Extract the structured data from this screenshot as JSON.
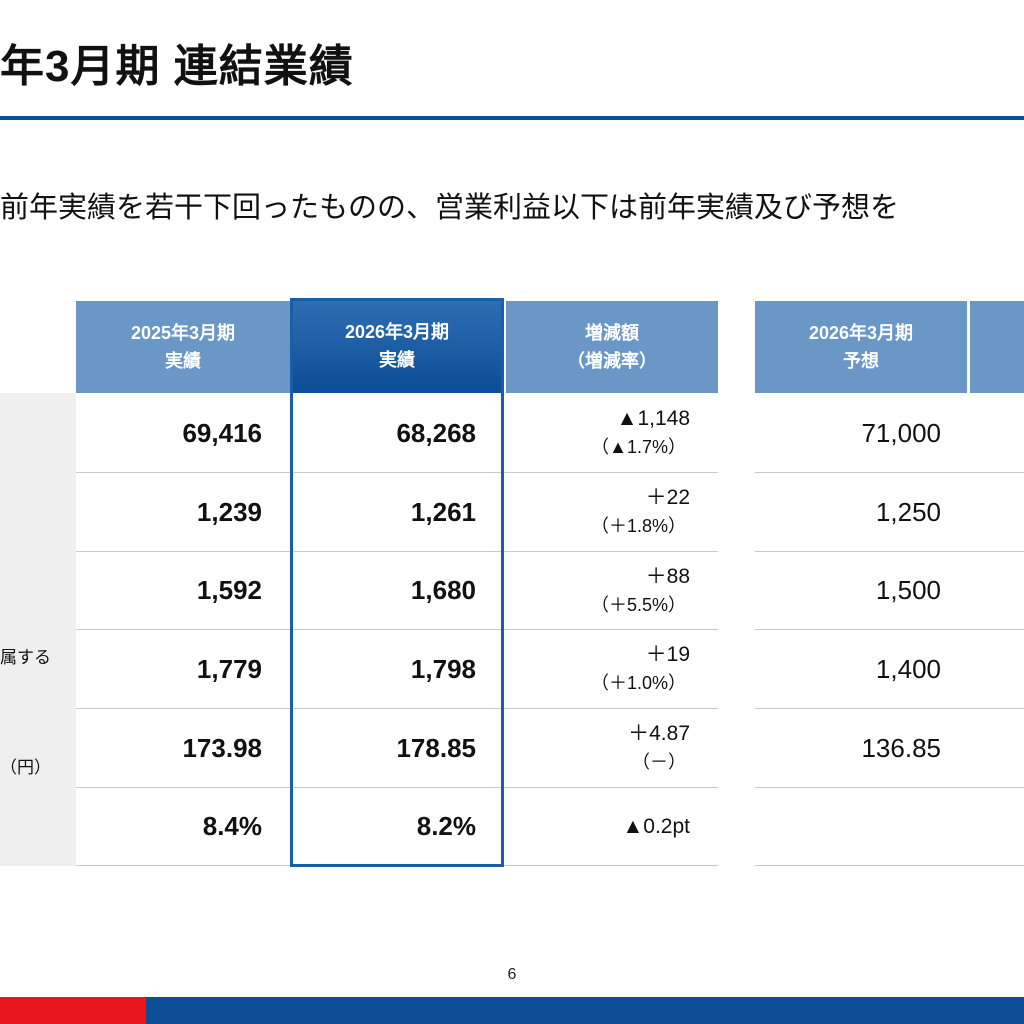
{
  "title": "年3月期 連結業績",
  "summary": "前年実績を若干下回ったものの、営業利益以下は前年実績及び予想を",
  "table": {
    "headers": [
      {
        "line1": "2025年3月期",
        "line2": "実績"
      },
      {
        "line1": "2026年3月期",
        "line2": "実績"
      },
      {
        "line1": "増減額",
        "line2": "（増減率）"
      },
      {
        "line1": "2026年3月期",
        "line2": "予想"
      }
    ],
    "rows": [
      {
        "label": "",
        "prev": "69,416",
        "curr": "68,268",
        "diff": "▲1,148",
        "rate": "（▲1.7%）",
        "forecast": "71,000"
      },
      {
        "label": "",
        "prev": "1,239",
        "curr": "1,261",
        "diff": "＋22",
        "rate": "（＋1.8%）",
        "forecast": "1,250"
      },
      {
        "label": "",
        "prev": "1,592",
        "curr": "1,680",
        "diff": "＋88",
        "rate": "（＋5.5%）",
        "forecast": "1,500"
      },
      {
        "label": "属する",
        "prev": "1,779",
        "curr": "1,798",
        "diff": "＋19",
        "rate": "（＋1.0%）",
        "forecast": "1,400"
      },
      {
        "label": "（円）",
        "prev": "173.98",
        "curr": "178.85",
        "diff": "＋4.87",
        "rate": "（－）",
        "forecast": "136.85"
      },
      {
        "label": "",
        "prev": "8.4%",
        "curr": "8.2%",
        "diff": "▲0.2pt",
        "rate": "",
        "forecast": ""
      }
    ]
  },
  "page_number": "6",
  "colors": {
    "brand_blue": "#0b4d96",
    "header_blue": "#6a97c6",
    "accent_red": "#e8151f"
  }
}
